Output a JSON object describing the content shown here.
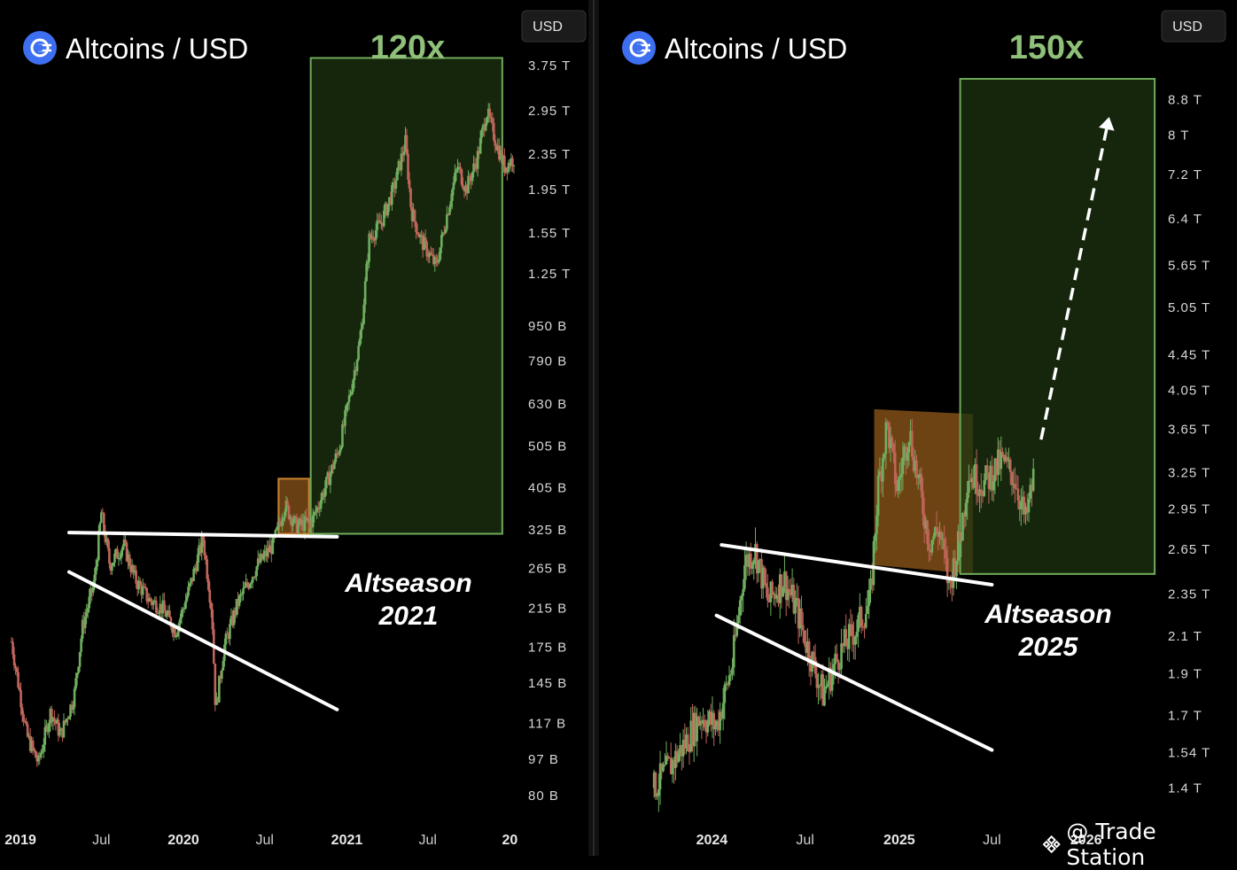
{
  "colors": {
    "background": "#000000",
    "up_candle": "#6fae5f",
    "down_candle": "#c0655b",
    "green_box_stroke": "#6fa95a",
    "green_box_fill": "#1d3311",
    "orange_box_stroke": "#c8842f",
    "orange_box_fill": "#8a5418",
    "multiplier_text": "#8fc07a",
    "axis_text": "#d8d8d8",
    "logo_blue": "#3d6ff0"
  },
  "watermark": {
    "label": "@ Trade Station",
    "icon": "binance-diamond-icon"
  },
  "chart_data": [
    {
      "type": "candlestick",
      "title": "Altcoins / USD",
      "title_icon": "altcoin-logo-icon",
      "currency_badge": "USD",
      "y_scale": "log",
      "ylim": [
        75000000000,
        4000000000000
      ],
      "y_ticks": [
        "3.75 T",
        "2.95 T",
        "2.35 T",
        "1.95 T",
        "1.55 T",
        "1.25 T",
        "950 B",
        "790 B",
        "630 B",
        "505 B",
        "405 B",
        "325 B",
        "265 B",
        "215 B",
        "175 B",
        "145 B",
        "117 B",
        "97 B",
        "80 B"
      ],
      "y_tick_values": [
        3750000000000,
        2950000000000,
        2350000000000,
        1950000000000,
        1550000000000,
        1250000000000,
        950000000000,
        790000000000,
        630000000000,
        505000000000,
        405000000000,
        325000000000,
        265000000000,
        215000000000,
        175000000000,
        145000000000,
        117000000000,
        97000000000,
        80000000000
      ],
      "x_ticks": [
        {
          "label": "2019",
          "date": "2019-01-01",
          "bold": true
        },
        {
          "label": "Jul",
          "date": "2019-07-01",
          "bold": false
        },
        {
          "label": "2020",
          "date": "2020-01-01",
          "bold": true
        },
        {
          "label": "Jul",
          "date": "2020-07-01",
          "bold": false
        },
        {
          "label": "2021",
          "date": "2021-01-01",
          "bold": true
        },
        {
          "label": "Jul",
          "date": "2021-07-01",
          "bold": false
        },
        {
          "label": "20",
          "date": "2022-01-01",
          "bold": true
        }
      ],
      "xlim": [
        "2018-12-10",
        "2022-01-20"
      ],
      "series_points": [
        [
          "2018-12-12",
          180000000000
        ],
        [
          "2019-01-15",
          110000000000
        ],
        [
          "2019-02-10",
          95000000000
        ],
        [
          "2019-03-10",
          125000000000
        ],
        [
          "2019-04-01",
          110000000000
        ],
        [
          "2019-05-01",
          135000000000
        ],
        [
          "2019-05-20",
          195000000000
        ],
        [
          "2019-06-15",
          245000000000
        ],
        [
          "2019-07-01",
          355000000000
        ],
        [
          "2019-07-20",
          270000000000
        ],
        [
          "2019-08-20",
          300000000000
        ],
        [
          "2019-09-15",
          250000000000
        ],
        [
          "2019-10-15",
          225000000000
        ],
        [
          "2019-11-15",
          215000000000
        ],
        [
          "2019-12-15",
          190000000000
        ],
        [
          "2020-01-15",
          240000000000
        ],
        [
          "2020-02-14",
          310000000000
        ],
        [
          "2020-03-05",
          210000000000
        ],
        [
          "2020-03-13",
          125000000000
        ],
        [
          "2020-04-01",
          175000000000
        ],
        [
          "2020-05-01",
          220000000000
        ],
        [
          "2020-06-15",
          270000000000
        ],
        [
          "2020-07-20",
          300000000000
        ],
        [
          "2020-08-15",
          370000000000
        ],
        [
          "2020-09-10",
          330000000000
        ],
        [
          "2020-10-15",
          340000000000
        ],
        [
          "2020-11-15",
          410000000000
        ],
        [
          "2020-12-15",
          500000000000
        ],
        [
          "2021-01-10",
          680000000000
        ],
        [
          "2021-02-01",
          900000000000
        ],
        [
          "2021-02-20",
          1500000000000
        ],
        [
          "2021-03-20",
          1650000000000
        ],
        [
          "2021-04-15",
          1950000000000
        ],
        [
          "2021-05-12",
          2500000000000
        ],
        [
          "2021-05-25",
          1750000000000
        ],
        [
          "2021-06-15",
          1500000000000
        ],
        [
          "2021-07-20",
          1300000000000
        ],
        [
          "2021-08-20",
          1850000000000
        ],
        [
          "2021-09-06",
          2200000000000
        ],
        [
          "2021-09-25",
          1950000000000
        ],
        [
          "2021-10-20",
          2300000000000
        ],
        [
          "2021-11-10",
          2950000000000
        ],
        [
          "2021-12-01",
          2500000000000
        ],
        [
          "2021-12-20",
          2200000000000
        ],
        [
          "2022-01-10",
          2300000000000
        ]
      ],
      "multiplier_label": "120x",
      "annotation": [
        "Altseason",
        "2021"
      ],
      "green_box": {
        "x0": "2020-10-12",
        "x1": "2021-12-15",
        "y0": 318000000000,
        "y1": 3900000000000
      },
      "orange_box": {
        "x0": "2020-08-01",
        "x1": "2020-10-08",
        "y0": 318000000000,
        "y1": 425000000000
      },
      "lines": [
        {
          "name": "resistance",
          "from": [
            "2019-04-20",
            320000000000
          ],
          "to": [
            "2020-12-10",
            313000000000
          ]
        },
        {
          "name": "support",
          "from": [
            "2019-04-20",
            260000000000
          ],
          "to": [
            "2020-12-10",
            126000000000
          ]
        }
      ]
    },
    {
      "type": "candlestick",
      "title": "Altcoins / USD",
      "title_icon": "altcoin-logo-icon",
      "currency_badge": "USD",
      "y_scale": "log",
      "ylim": [
        1350000000000,
        9500000000000
      ],
      "y_ticks": [
        "8.8 T",
        "8 T",
        "7.2 T",
        "6.4 T",
        "5.65 T",
        "5.05 T",
        "4.45 T",
        "4.05 T",
        "3.65 T",
        "3.25 T",
        "2.95 T",
        "2.65 T",
        "2.35 T",
        "2.1 T",
        "1.9 T",
        "1.7 T",
        "1.54 T",
        "1.4 T"
      ],
      "y_tick_values": [
        8800000000000,
        8000000000000,
        7200000000000,
        6400000000000,
        5650000000000,
        5050000000000,
        4450000000000,
        4050000000000,
        3650000000000,
        3250000000000,
        2950000000000,
        2650000000000,
        2350000000000,
        2100000000000,
        1900000000000,
        1700000000000,
        1540000000000,
        1400000000000
      ],
      "x_ticks": [
        {
          "label": "2024",
          "date": "2024-01-01",
          "bold": true
        },
        {
          "label": "Jul",
          "date": "2024-07-01",
          "bold": false
        },
        {
          "label": "2025",
          "date": "2025-01-01",
          "bold": true
        },
        {
          "label": "Jul",
          "date": "2025-07-01",
          "bold": false
        },
        {
          "label": "2026",
          "date": "2026-01-01",
          "bold": true
        }
      ],
      "xlim": [
        "2023-08-20",
        "2026-05-20"
      ],
      "series_points": [
        [
          "2023-09-10",
          1400000000000
        ],
        [
          "2023-10-10",
          1480000000000
        ],
        [
          "2023-11-10",
          1580000000000
        ],
        [
          "2023-12-10",
          1700000000000
        ],
        [
          "2024-01-10",
          1650000000000
        ],
        [
          "2024-02-10",
          1950000000000
        ],
        [
          "2024-03-05",
          2550000000000
        ],
        [
          "2024-03-25",
          2650000000000
        ],
        [
          "2024-04-20",
          2300000000000
        ],
        [
          "2024-05-20",
          2450000000000
        ],
        [
          "2024-06-15",
          2250000000000
        ],
        [
          "2024-07-05",
          2050000000000
        ],
        [
          "2024-08-05",
          1800000000000
        ],
        [
          "2024-09-05",
          2000000000000
        ],
        [
          "2024-10-10",
          2150000000000
        ],
        [
          "2024-11-05",
          2300000000000
        ],
        [
          "2024-11-20",
          3100000000000
        ],
        [
          "2024-12-08",
          3700000000000
        ],
        [
          "2024-12-28",
          3100000000000
        ],
        [
          "2025-01-20",
          3650000000000
        ],
        [
          "2025-02-10",
          3100000000000
        ],
        [
          "2025-03-01",
          2700000000000
        ],
        [
          "2025-03-20",
          2800000000000
        ],
        [
          "2025-04-08",
          2400000000000
        ],
        [
          "2025-05-01",
          2750000000000
        ],
        [
          "2025-05-15",
          3250000000000
        ],
        [
          "2025-06-15",
          3150000000000
        ],
        [
          "2025-07-20",
          3350000000000
        ],
        [
          "2025-08-15",
          3200000000000
        ],
        [
          "2025-09-05",
          2850000000000
        ],
        [
          "2025-09-20",
          3200000000000
        ]
      ],
      "multiplier_label": "150x",
      "annotation": [
        "Altseason",
        "2025"
      ],
      "green_box": {
        "x0": "2025-04-30",
        "x1": "2026-05-15",
        "y0": 2480000000000,
        "y1": 9300000000000
      },
      "orange_box_quad": [
        [
          "2024-11-13",
          2540000000000
        ],
        [
          "2024-11-13",
          3850000000000
        ],
        [
          "2025-05-25",
          3800000000000
        ],
        [
          "2025-05-25",
          2480000000000
        ]
      ],
      "projection_arrow": {
        "from": [
          "2025-10-05",
          3550000000000
        ],
        "to": [
          "2026-02-15",
          8400000000000
        ]
      },
      "lines": [
        {
          "name": "resistance",
          "from": [
            "2024-01-20",
            2680000000000
          ],
          "to": [
            "2025-07-01",
            2410000000000
          ]
        },
        {
          "name": "support",
          "from": [
            "2024-01-10",
            2220000000000
          ],
          "to": [
            "2025-07-01",
            1550000000000
          ]
        }
      ]
    }
  ]
}
